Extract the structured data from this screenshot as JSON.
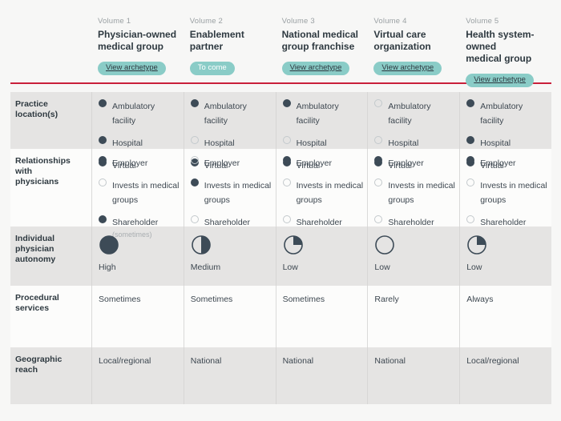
{
  "colors": {
    "accent_teal": "#8accc7",
    "accent_red": "#c9203a",
    "dark_slate": "#3d4b57",
    "row_gray": "#e5e4e3",
    "row_light": "#fcfcfb"
  },
  "header": {
    "columns": [
      {
        "volume": "Volume 1",
        "title_lines": [
          "Physician-owned",
          "medical group"
        ],
        "pill": "View archetype",
        "pill_kind": "link"
      },
      {
        "volume": "Volume 2",
        "title_lines": [
          "Enablement",
          "partner"
        ],
        "pill": "To come",
        "pill_kind": "static"
      },
      {
        "volume": "Volume 3",
        "title_lines": [
          "National medical",
          "group franchise"
        ],
        "pill": "View archetype",
        "pill_kind": "link"
      },
      {
        "volume": "Volume 4",
        "title_lines": [
          "Virtual care",
          "organization"
        ],
        "pill": "View archetype",
        "pill_kind": "link"
      },
      {
        "volume": "Volume 5",
        "title_lines": [
          "Health system-owned",
          "medical group"
        ],
        "pill": "View archetype",
        "pill_kind": "link"
      }
    ]
  },
  "table": {
    "rows": [
      {
        "label_lines": [
          "Practice location(s)"
        ],
        "type": "radio-list",
        "options": [
          "Ambulatory facility",
          "Hospital",
          "Virtual"
        ],
        "cells": [
          [
            true,
            true,
            true
          ],
          [
            true,
            false,
            true
          ],
          [
            true,
            false,
            true
          ],
          [
            false,
            false,
            true
          ],
          [
            true,
            true,
            true
          ]
        ]
      },
      {
        "label_lines": [
          "Relationships with",
          "physicians"
        ],
        "type": "radio-list",
        "options": [
          "Employer",
          "Invests in medical groups",
          "Shareholder"
        ],
        "cells": [
          [
            true,
            false,
            true
          ],
          [
            false,
            true,
            false
          ],
          [
            true,
            false,
            false
          ],
          [
            true,
            false,
            false
          ],
          [
            true,
            false,
            false
          ]
        ],
        "notes": [
          {
            "cell": 0,
            "option": 2,
            "text": "(sometimes)"
          }
        ]
      },
      {
        "label_lines": [
          "Individual physician",
          "autonomy"
        ],
        "type": "pie",
        "cells": [
          {
            "fraction": 1,
            "label": "High"
          },
          {
            "fraction": 0.5,
            "label": "Medium"
          },
          {
            "fraction": 0.25,
            "label": "Low"
          },
          {
            "fraction": 0,
            "label": "Low"
          },
          {
            "fraction": 0.25,
            "label": "Low"
          }
        ]
      },
      {
        "label_lines": [
          "Procedural",
          "services"
        ],
        "type": "text",
        "cells": [
          "Sometimes",
          "Sometimes",
          "Sometimes",
          "Rarely",
          "Always"
        ]
      },
      {
        "label_lines": [
          "Geographic reach"
        ],
        "type": "text",
        "cells": [
          "Local/regional",
          "National",
          "National",
          "National",
          "Local/regional"
        ]
      }
    ]
  }
}
